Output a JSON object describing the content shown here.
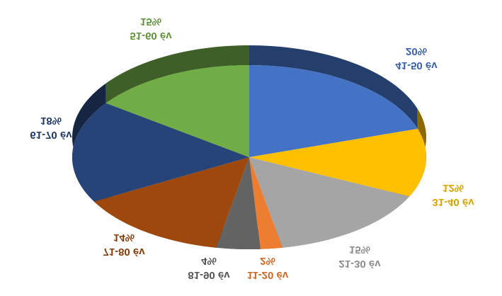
{
  "chart_data": {
    "type": "pie",
    "categories": [
      "41-50 év",
      "31-40 év",
      "21-30 év",
      "11-20 év",
      "81-90 év",
      "71-80 év",
      "61-70 év",
      "51-60 év"
    ],
    "values": [
      20,
      12,
      15,
      2,
      4,
      14,
      18,
      15
    ],
    "value_labels": [
      "20%",
      "12%",
      "15%",
      "2%",
      "4%",
      "14%",
      "18%",
      "15%"
    ],
    "colors": [
      "#4472c4",
      "#ffc000",
      "#a5a5a5",
      "#ed7d31",
      "#636363",
      "#9e480e",
      "#264478",
      "#70ad47"
    ]
  }
}
